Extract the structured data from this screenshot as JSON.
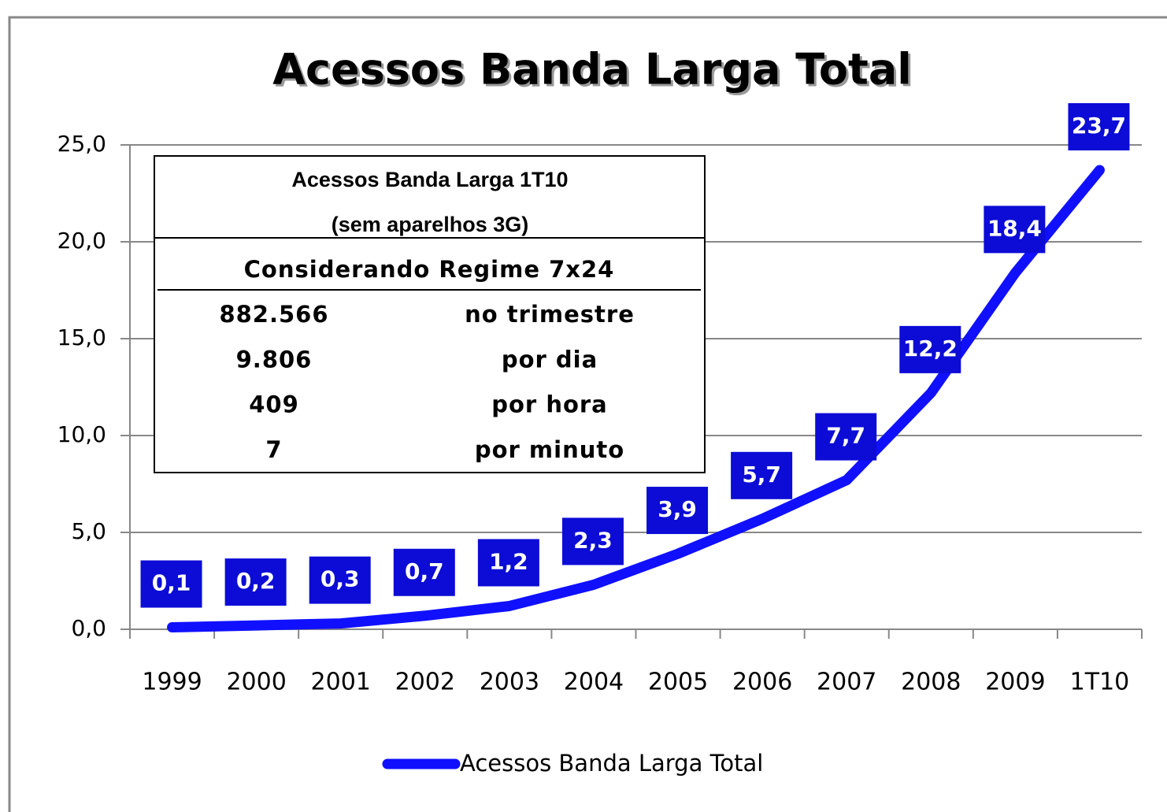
{
  "chart_data": {
    "type": "line",
    "title": "Acessos Banda Larga Total",
    "categories": [
      "1999",
      "2000",
      "2001",
      "2002",
      "2003",
      "2004",
      "2005",
      "2006",
      "2007",
      "2008",
      "2009",
      "1T10"
    ],
    "series": [
      {
        "name": "Acessos Banda Larga Total",
        "color": "#1010ff",
        "values": [
          0.1,
          0.2,
          0.3,
          0.7,
          1.2,
          2.3,
          3.9,
          5.7,
          7.7,
          12.2,
          18.4,
          23.7
        ],
        "value_labels": [
          "0,1",
          "0,2",
          "0,3",
          "0,7",
          "1,2",
          "2,3",
          "3,9",
          "5,7",
          "7,7",
          "12,2",
          "18,4",
          "23,7"
        ]
      }
    ],
    "ylim": [
      0,
      25
    ],
    "yticks": [
      {
        "value": 0,
        "label": "0,0"
      },
      {
        "value": 5,
        "label": "5,0"
      },
      {
        "value": 10,
        "label": "10,0"
      },
      {
        "value": 15,
        "label": "15,0"
      },
      {
        "value": 20,
        "label": "20,0"
      },
      {
        "value": 25,
        "label": "25,0"
      }
    ],
    "grid": true,
    "legend": "bottom",
    "inset": {
      "title": "Acessos Banda Larga 1T10",
      "subtitle": "(sem aparelhos 3G)",
      "header": "Considerando Regime 7x24",
      "rows": [
        [
          "882.566",
          "no trimestre"
        ],
        [
          "9.806",
          "por dia"
        ],
        [
          "409",
          "por hora"
        ],
        [
          "7",
          "por minuto"
        ]
      ]
    }
  }
}
